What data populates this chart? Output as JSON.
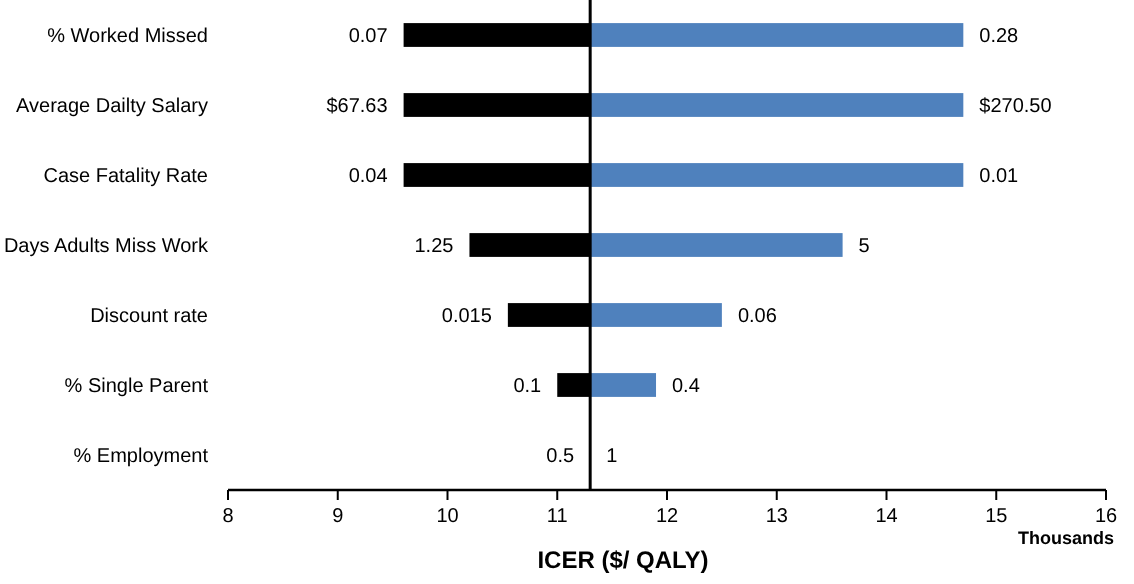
{
  "chart_data": {
    "type": "bar",
    "orientation": "horizontal",
    "xlabel": "ICER ($/ QALY)",
    "categories": [
      "% Worked Missed",
      "Average Dailty Salary",
      "Case Fatality Rate",
      "Days Adults Miss Work",
      "Discount rate",
      "% Single Parent",
      "% Employment"
    ],
    "series": [
      {
        "color": "#000000",
        "base": [
          9.6,
          9.6,
          9.6,
          10.2,
          10.55,
          11.0,
          null
        ],
        "values": [
          1.7,
          1.7,
          1.7,
          1.1,
          0.75,
          0.3,
          null
        ]
      },
      {
        "color": "#4f81bd",
        "base": [
          11.3,
          11.3,
          11.3,
          11.3,
          11.3,
          11.3,
          null
        ],
        "values": [
          3.4,
          3.4,
          3.4,
          2.3,
          1.2,
          0.6,
          null
        ]
      }
    ],
    "xlim": [
      8,
      16
    ],
    "xticks": [
      8,
      9,
      10,
      11,
      12,
      13,
      14,
      15,
      16
    ],
    "ref_lines": [
      {
        "axis": "x",
        "value": 11.3,
        "color": "#000000"
      }
    ],
    "annotations": [
      {
        "text": "0.07",
        "x": 9.6,
        "y": "% Worked Missed"
      },
      {
        "text": "0.28",
        "x": 14.7,
        "y": "% Worked Missed"
      },
      {
        "text": "$67.63",
        "x": 9.6,
        "y": "Average Dailty Salary"
      },
      {
        "text": "$270.50",
        "x": 14.7,
        "y": "Average Dailty Salary"
      },
      {
        "text": "0.04",
        "x": 9.6,
        "y": "Case Fatality Rate"
      },
      {
        "text": "0.01",
        "x": 14.7,
        "y": "Case Fatality Rate"
      },
      {
        "text": "1.25",
        "x": 10.2,
        "y": "Days Adults Miss Work"
      },
      {
        "text": "5",
        "x": 13.6,
        "y": "Days Adults Miss Work"
      },
      {
        "text": "0.015",
        "x": 10.55,
        "y": "Discount rate"
      },
      {
        "text": "0.06",
        "x": 12.5,
        "y": "Discount rate"
      },
      {
        "text": "0.1",
        "x": 11.0,
        "y": "% Single Parent"
      },
      {
        "text": "0.4",
        "x": 11.9,
        "y": "% Single Parent"
      },
      {
        "text": "0.5",
        "x": 11.3,
        "y": "% Employment"
      },
      {
        "text": "1",
        "x": 11.3,
        "y": "% Employment"
      },
      "Thousands"
    ],
    "grid": false
  }
}
